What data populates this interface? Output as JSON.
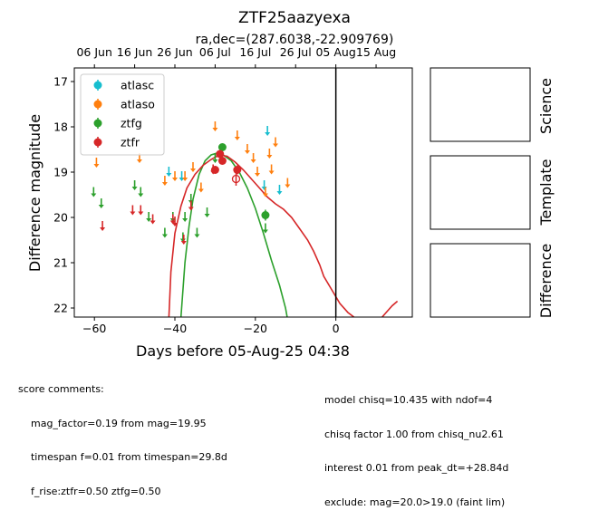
{
  "chart_data": {
    "type": "scatter",
    "title": "ZTF25aazyexa",
    "subtitle": "ra,dec=(287.6038,-22.909769)",
    "xlabel": "Days before 05-Aug-25 04:38",
    "ylabel": "Difference magnitude",
    "xlim": [
      -65,
      19
    ],
    "ylim": [
      22.2,
      16.7
    ],
    "x_ticks": [
      -60,
      -40,
      -20,
      0
    ],
    "y_ticks": [
      17,
      18,
      19,
      20,
      21,
      22
    ],
    "top_axis_ticks": [
      {
        "x": -60,
        "label": "06 Jun"
      },
      {
        "x": -50,
        "label": "16 Jun"
      },
      {
        "x": -40,
        "label": "26 Jun"
      },
      {
        "x": -30,
        "label": "06 Jul"
      },
      {
        "x": -20,
        "label": "16 Jul"
      },
      {
        "x": -10,
        "label": "26 Jul"
      },
      {
        "x": 0,
        "label": "05 Aug"
      },
      {
        "x": 10,
        "label": "15 Aug"
      }
    ],
    "vline_x": 0,
    "legend_position": "upper-left",
    "colors": {
      "atlasc": "#17becf",
      "atlaso": "#ff7f0e",
      "ztfg": "#2ca02c",
      "ztfr": "#d62728"
    },
    "series": [
      {
        "name": "atlasc",
        "color": "#17becf",
        "upper_limits": [
          [
            -41.5,
            19.0
          ],
          [
            -38.3,
            19.1
          ],
          [
            -17.0,
            18.1
          ],
          [
            -14.0,
            19.4
          ],
          [
            -17.8,
            19.3
          ]
        ],
        "detections": []
      },
      {
        "name": "atlaso",
        "color": "#ff7f0e",
        "upper_limits": [
          [
            -59.5,
            18.8
          ],
          [
            -48.8,
            18.7
          ],
          [
            -42.5,
            19.2
          ],
          [
            -40.0,
            19.1
          ],
          [
            -37.5,
            19.1
          ],
          [
            -35.5,
            18.9
          ],
          [
            -33.5,
            19.35
          ],
          [
            -30.0,
            18.0
          ],
          [
            -24.5,
            18.2
          ],
          [
            -22.0,
            18.5
          ],
          [
            -20.5,
            18.7
          ],
          [
            -19.5,
            19.0
          ],
          [
            -16.5,
            18.6
          ],
          [
            -16.0,
            18.95
          ],
          [
            -15.0,
            18.35
          ],
          [
            -12.0,
            19.25
          ],
          [
            -17.5,
            19.45
          ]
        ],
        "detections": []
      },
      {
        "name": "ztfg",
        "color": "#2ca02c",
        "upper_limits": [
          [
            -60.2,
            19.45
          ],
          [
            -58.3,
            19.7
          ],
          [
            -50.0,
            19.3
          ],
          [
            -48.5,
            19.45
          ],
          [
            -46.5,
            20.0
          ],
          [
            -42.5,
            20.35
          ],
          [
            -40.5,
            20.0
          ],
          [
            -38.0,
            20.45
          ],
          [
            -37.5,
            20.0
          ],
          [
            -36.0,
            19.6
          ],
          [
            -34.5,
            20.35
          ],
          [
            -32.0,
            19.9
          ],
          [
            -30.0,
            18.7
          ],
          [
            -17.5,
            20.25
          ]
        ],
        "detections": [
          [
            -28.2,
            18.45,
            0.08
          ],
          [
            -17.5,
            19.95,
            0.12
          ]
        ]
      },
      {
        "name": "ztfr",
        "color": "#d62728",
        "upper_limits": [
          [
            -58.0,
            20.2
          ],
          [
            -50.5,
            19.85
          ],
          [
            -48.5,
            19.85
          ],
          [
            -45.5,
            20.05
          ],
          [
            -40.5,
            20.05
          ],
          [
            -40.0,
            20.1
          ],
          [
            -37.8,
            20.5
          ],
          [
            -36.0,
            19.75
          ],
          [
            -30.5,
            18.95
          ]
        ],
        "detections": [
          [
            -30.0,
            18.95,
            0.08
          ],
          [
            -28.8,
            18.6,
            0.08
          ],
          [
            -28.2,
            18.75,
            0.08
          ],
          [
            -24.5,
            18.95,
            0.1
          ]
        ],
        "open_points": [
          [
            -24.8,
            19.15,
            0.15
          ]
        ]
      }
    ],
    "model_curves": [
      {
        "name": "ztfg",
        "color": "#2ca02c",
        "points": [
          [
            -38.5,
            22.2
          ],
          [
            -37.5,
            21.0
          ],
          [
            -36.5,
            20.2
          ],
          [
            -35.5,
            19.6
          ],
          [
            -34,
            19.05
          ],
          [
            -32.5,
            18.75
          ],
          [
            -31,
            18.62
          ],
          [
            -29.5,
            18.58
          ],
          [
            -28,
            18.62
          ],
          [
            -26,
            18.75
          ],
          [
            -24,
            19.0
          ],
          [
            -22,
            19.35
          ],
          [
            -20,
            19.8
          ],
          [
            -18,
            20.35
          ],
          [
            -16,
            20.95
          ],
          [
            -14,
            21.5
          ],
          [
            -12.5,
            22.0
          ],
          [
            -12.1,
            22.2
          ]
        ]
      },
      {
        "name": "ztfr",
        "color": "#d62728",
        "points": [
          [
            -41.5,
            22.2
          ],
          [
            -41,
            21.2
          ],
          [
            -40,
            20.35
          ],
          [
            -38.5,
            19.75
          ],
          [
            -37,
            19.35
          ],
          [
            -35,
            19.05
          ],
          [
            -33,
            18.85
          ],
          [
            -31,
            18.72
          ],
          [
            -29,
            18.62
          ],
          [
            -27,
            18.65
          ],
          [
            -25,
            18.78
          ],
          [
            -23,
            18.95
          ],
          [
            -21,
            19.15
          ],
          [
            -19,
            19.35
          ],
          [
            -17,
            19.55
          ],
          [
            -15,
            19.7
          ],
          [
            -13,
            19.82
          ],
          [
            -11,
            20.0
          ],
          [
            -9,
            20.25
          ],
          [
            -7,
            20.5
          ],
          [
            -5.5,
            20.75
          ],
          [
            -4,
            21.05
          ],
          [
            -3,
            21.3
          ],
          [
            -1,
            21.6
          ],
          [
            1,
            21.9
          ],
          [
            3,
            22.1
          ],
          [
            4.5,
            22.2
          ]
        ]
      },
      {
        "name": "ztfr-tail",
        "color": "#d62728",
        "points": [
          [
            11.5,
            22.2
          ],
          [
            12.5,
            22.1
          ],
          [
            14,
            21.95
          ],
          [
            15.3,
            21.85
          ]
        ]
      }
    ]
  },
  "panels": {
    "science_label": "Science",
    "template_label": "Template",
    "difference_label": "Difference"
  },
  "notes": {
    "left": [
      "score comments:",
      "    mag_factor=0.19 from mag=19.95",
      "    timespan f=0.01 from timespan=29.8d",
      "    f_rise:ztfr=0.50 ztfg=0.50"
    ],
    "right": [
      "model chisq=10.435 with ndof=4",
      "chisq factor 1.00 from chisq_nu2.61",
      "interest 0.01 from peak_dt=+28.84d",
      "exclude: mag=20.0>19.0 (faint lim)"
    ]
  }
}
